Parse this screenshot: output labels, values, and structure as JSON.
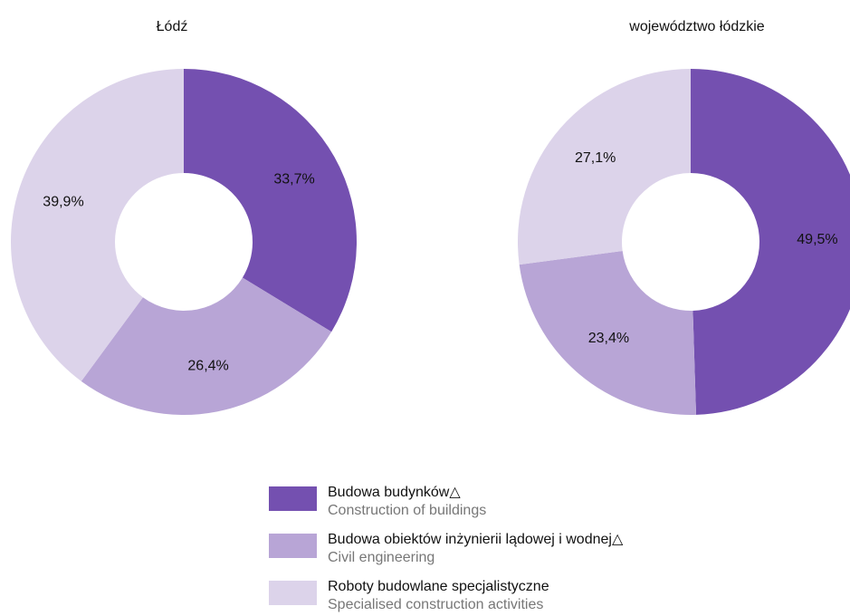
{
  "chart_data": [
    {
      "type": "pie",
      "title": "Łódź",
      "values": [
        33.7,
        26.4,
        39.9
      ],
      "value_labels": [
        "33,7%",
        "26,4%",
        "39,9%"
      ]
    },
    {
      "type": "pie",
      "title": "województwo łódzkie",
      "values": [
        49.5,
        23.4,
        27.1
      ],
      "value_labels": [
        "49,5%",
        "23,4%",
        "27,1%"
      ]
    }
  ],
  "legend": {
    "items": [
      {
        "name": "Budowa budynków△",
        "translation": "Construction of buildings",
        "color": "#7450b0"
      },
      {
        "name": "Budowa obiektów inżynierii lądowej i wodnej△",
        "translation": "Civil engineering",
        "color": "#b8a5d6"
      },
      {
        "name": "Roboty budowlane specjalistyczne",
        "translation": "Specialised construction activities",
        "color": "#dcd3ea"
      }
    ]
  }
}
